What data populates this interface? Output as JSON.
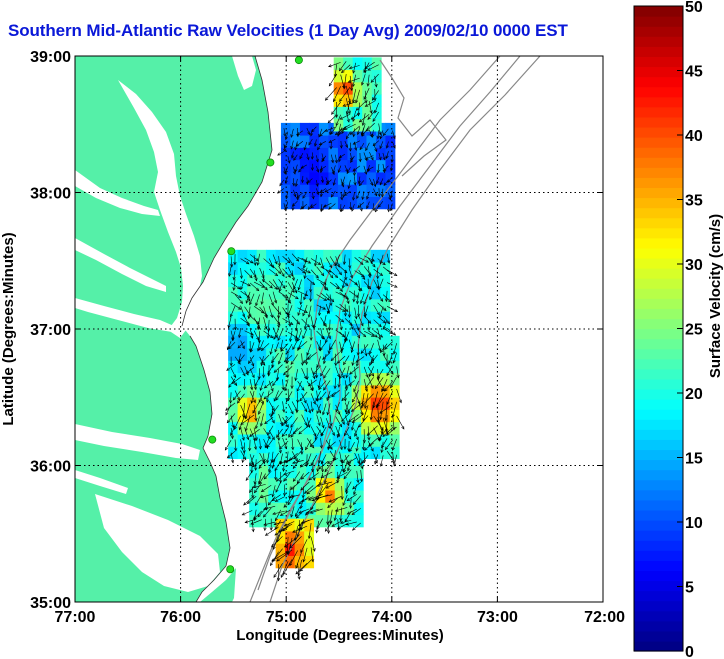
{
  "title": "Southern Mid-Atlantic Raw Velocities (1 Day Avg) 2009/02/10 0000 EST",
  "map": {
    "xlabel": "Longitude (Degrees:Minutes)",
    "ylabel": "Latitude (Degrees:Minutes)",
    "lon_range": [
      -77,
      -72
    ],
    "lat_range": [
      35,
      39
    ],
    "lon_ticks": [
      {
        "value": -77,
        "label": "77:00"
      },
      {
        "value": -76,
        "label": "76:00"
      },
      {
        "value": -75,
        "label": "75:00"
      },
      {
        "value": -74,
        "label": "74:00"
      },
      {
        "value": -73,
        "label": "73:00"
      },
      {
        "value": -72,
        "label": "72:00"
      }
    ],
    "lat_ticks": [
      {
        "value": 35,
        "label": "35:00"
      },
      {
        "value": 36,
        "label": "36:00"
      },
      {
        "value": 37,
        "label": "37:00"
      },
      {
        "value": 38,
        "label": "38:00"
      },
      {
        "value": 39,
        "label": "39:00"
      }
    ],
    "grid": "dotted",
    "land_color": "#55f0a8",
    "station_color": "#22dd22",
    "stations": [
      {
        "lon": -74.88,
        "lat": 38.97
      },
      {
        "lon": -75.15,
        "lat": 38.22
      },
      {
        "lon": -75.52,
        "lat": 37.57
      },
      {
        "lon": -75.7,
        "lat": 36.19
      },
      {
        "lon": -75.53,
        "lat": 35.24
      }
    ]
  },
  "colorbar": {
    "label": "Surface Velocity (cm/s)",
    "min": 0,
    "max": 50,
    "ticks": [
      {
        "value": 0,
        "label": "0"
      },
      {
        "value": 5,
        "label": "5"
      },
      {
        "value": 10,
        "label": "10"
      },
      {
        "value": 15,
        "label": "15"
      },
      {
        "value": 20,
        "label": "20"
      },
      {
        "value": 25,
        "label": "25"
      },
      {
        "value": 30,
        "label": "30"
      },
      {
        "value": 35,
        "label": "35"
      },
      {
        "value": 40,
        "label": "40"
      },
      {
        "value": 45,
        "label": "45"
      },
      {
        "value": 50,
        "label": "50"
      }
    ],
    "colormap": "jet"
  },
  "chart_data": {
    "type": "heatmap",
    "value_unit": "cm/s",
    "cell_deg": [
      0.09,
      0.09
    ],
    "regions": [
      {
        "lon": [
          -75.05,
          -74.05
        ],
        "lat": [
          37.88,
          38.45
        ],
        "base_speed": 11,
        "dir": 200
      },
      {
        "lon": [
          -74.55,
          -74.1
        ],
        "lat": [
          38.45,
          38.92
        ],
        "base_speed": 22,
        "dir": 210
      },
      {
        "lon": [
          -75.55,
          -74.05
        ],
        "lat": [
          36.95,
          37.55
        ],
        "base_speed": 19,
        "dir": 160
      },
      {
        "lon": [
          -75.55,
          -73.95
        ],
        "lat": [
          36.05,
          36.95
        ],
        "base_speed": 20,
        "dir": 190
      },
      {
        "lon": [
          -75.35,
          -74.35
        ],
        "lat": [
          35.55,
          36.05
        ],
        "base_speed": 21,
        "dir": 215
      },
      {
        "lon": [
          -75.1,
          -74.75
        ],
        "lat": [
          35.25,
          35.55
        ],
        "base_speed": 32,
        "dir": 205
      }
    ],
    "hotspots": [
      {
        "lon": -74.45,
        "lat": 38.75,
        "speed": 44,
        "radius": 0.18
      },
      {
        "lon": -74.12,
        "lat": 36.45,
        "speed": 44,
        "radius": 0.3
      },
      {
        "lon": -75.35,
        "lat": 36.4,
        "speed": 40,
        "radius": 0.18
      },
      {
        "lon": -74.95,
        "lat": 35.38,
        "speed": 44,
        "radius": 0.16
      },
      {
        "lon": -74.6,
        "lat": 35.8,
        "speed": 40,
        "radius": 0.2
      },
      {
        "lon": -75.2,
        "lat": 37.2,
        "speed": 24,
        "radius": 0.35
      },
      {
        "lon": -74.75,
        "lat": 38.15,
        "speed": 6,
        "radius": 0.3
      },
      {
        "lon": -75.45,
        "lat": 36.85,
        "speed": 13,
        "radius": 0.25
      }
    ]
  }
}
